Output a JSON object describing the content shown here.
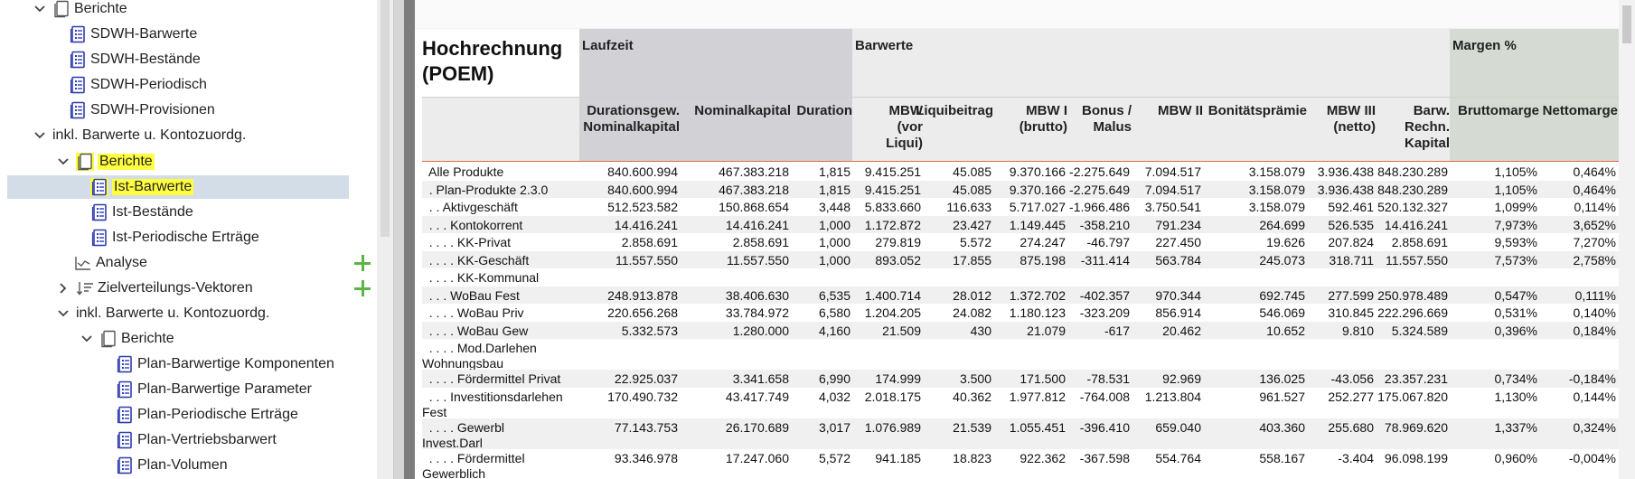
{
  "tree": {
    "items": [
      {
        "label": "Berichte",
        "chevron": "down",
        "icon": "folder-report-icon"
      },
      {
        "label": "SDWH-Barwerte",
        "icon": "report-icon"
      },
      {
        "label": "SDWH-Bestände",
        "icon": "report-icon"
      },
      {
        "label": "SDWH-Periodisch",
        "icon": "report-icon"
      },
      {
        "label": "SDWH-Provisionen",
        "icon": "report-icon"
      },
      {
        "label": "inkl. Barwerte u. Kontozuordg.",
        "chevron": "down"
      },
      {
        "label": "Berichte",
        "chevron": "down",
        "icon": "folder-report-icon",
        "highlighted": true
      },
      {
        "label": "Ist-Barwerte",
        "icon": "report-icon",
        "highlighted": true,
        "selected": true
      },
      {
        "label": "Ist-Bestände",
        "icon": "report-icon"
      },
      {
        "label": "Ist-Periodische Erträge",
        "icon": "report-icon"
      },
      {
        "label": "Analyse",
        "icon": "chart-icon",
        "add_button": true
      },
      {
        "label": "Zielverteilungs-Vektoren",
        "chevron": "right",
        "icon": "sort-icon",
        "add_button": true
      },
      {
        "label": "inkl. Barwerte u. Kontozuordg.",
        "chevron": "down"
      },
      {
        "label": "Berichte",
        "chevron": "down",
        "icon": "folder-report-icon"
      },
      {
        "label": "Plan-Barwertige Komponenten",
        "icon": "report-icon"
      },
      {
        "label": "Plan-Barwertige Parameter",
        "icon": "report-icon"
      },
      {
        "label": "Plan-Periodische Erträge",
        "icon": "report-icon"
      },
      {
        "label": "Plan-Vertriebsbarwert",
        "icon": "report-icon"
      },
      {
        "label": "Plan-Volumen",
        "icon": "report-icon"
      }
    ]
  },
  "report": {
    "title": "Hochrechnung (POEM)",
    "groups": {
      "laufzeit": "Laufzeit",
      "barwerte": "Barwerte",
      "margen": "Margen %"
    },
    "columns": [
      "Durationsgew.\nNominalkapital",
      "Nominalkapital",
      "Duration",
      "MBW\n(vor\nLiqui)",
      "Liquibeitrag",
      "MBW I\n(brutto)",
      "Bonus /\nMalus",
      "MBW II",
      "Bonitätsprämie",
      "MBW III\n(netto)",
      "Barw.\nRechn.\nKapital",
      "Bruttomarge",
      "Nettomarge"
    ],
    "rows": [
      {
        "name": "  Alle Produkte",
        "values": [
          "840.600.994",
          "467.383.218",
          "1,815",
          "9.415.251",
          "45.085",
          "9.370.166",
          "-2.275.649",
          "7.094.517",
          "3.158.079",
          "3.936.438",
          "848.230.289",
          "1,105%",
          "0,464%"
        ]
      },
      {
        "name": "  . Plan-Produkte 2.3.0",
        "values": [
          "840.600.994",
          "467.383.218",
          "1,815",
          "9.415.251",
          "45.085",
          "9.370.166",
          "-2.275.649",
          "7.094.517",
          "3.158.079",
          "3.936.438",
          "848.230.289",
          "1,105%",
          "0,464%"
        ]
      },
      {
        "name": "  . . Aktivgeschäft",
        "values": [
          "512.523.582",
          "150.868.654",
          "3,448",
          "5.833.660",
          "116.633",
          "5.717.027",
          "-1.966.486",
          "3.750.541",
          "3.158.079",
          "592.461",
          "520.132.327",
          "1,099%",
          "0,114%"
        ]
      },
      {
        "name": "  . . . Kontokorrent",
        "values": [
          "14.416.241",
          "14.416.241",
          "1,000",
          "1.172.872",
          "23.427",
          "1.149.445",
          "-358.210",
          "791.234",
          "264.699",
          "526.535",
          "14.416.241",
          "7,973%",
          "3,652%"
        ]
      },
      {
        "name": "  . . . . KK-Privat",
        "values": [
          "2.858.691",
          "2.858.691",
          "1,000",
          "279.819",
          "5.572",
          "274.247",
          "-46.797",
          "227.450",
          "19.626",
          "207.824",
          "2.858.691",
          "9,593%",
          "7,270%"
        ]
      },
      {
        "name": "  . . . . KK-Geschäft",
        "values": [
          "11.557.550",
          "11.557.550",
          "1,000",
          "893.052",
          "17.855",
          "875.198",
          "-311.414",
          "563.784",
          "245.073",
          "318.711",
          "11.557.550",
          "7,573%",
          "2,758%"
        ]
      },
      {
        "name": "  . . . . KK-Kommunal",
        "values": [
          "",
          "",
          "",
          "",
          "",
          "",
          "",
          "",
          "",
          "",
          "",
          "",
          ""
        ]
      },
      {
        "name": "  . . . WoBau Fest",
        "values": [
          "248.913.878",
          "38.406.630",
          "6,535",
          "1.400.714",
          "28.012",
          "1.372.702",
          "-402.357",
          "970.344",
          "692.745",
          "277.599",
          "250.978.489",
          "0,547%",
          "0,111%"
        ]
      },
      {
        "name": "  . . . . WoBau Priv",
        "values": [
          "220.656.268",
          "33.784.972",
          "6,580",
          "1.204.205",
          "24.082",
          "1.180.123",
          "-323.209",
          "856.914",
          "546.069",
          "310.845",
          "222.296.669",
          "0,531%",
          "0,140%"
        ]
      },
      {
        "name": "  . . . . WoBau Gew",
        "values": [
          "5.332.573",
          "1.280.000",
          "4,160",
          "21.509",
          "430",
          "21.079",
          "-617",
          "20.462",
          "10.652",
          "9.810",
          "5.324.589",
          "0,396%",
          "0,184%"
        ]
      },
      {
        "name": "  . . . . Mod.Darlehen\nWohnungsbau",
        "values": [
          "",
          "",
          "",
          "",
          "",
          "",
          "",
          "",
          "",
          "",
          "",
          "",
          ""
        ]
      },
      {
        "name": "  . . . . Fördermittel Privat",
        "values": [
          "22.925.037",
          "3.341.658",
          "6,990",
          "174.999",
          "3.500",
          "171.500",
          "-78.531",
          "92.969",
          "136.025",
          "-43.056",
          "23.357.231",
          "0,734%",
          "-0,184%"
        ]
      },
      {
        "name": "  . . . Investitionsdarlehen\nFest",
        "values": [
          "170.490.732",
          "43.417.749",
          "4,032",
          "2.018.175",
          "40.362",
          "1.977.812",
          "-764.008",
          "1.213.804",
          "961.527",
          "252.277",
          "175.067.820",
          "1,130%",
          "0,144%"
        ]
      },
      {
        "name": "  . . . . Gewerbl\nInvest.Darl",
        "values": [
          "77.143.753",
          "26.170.689",
          "3,017",
          "1.076.989",
          "21.539",
          "1.055.451",
          "-396.410",
          "659.040",
          "403.360",
          "255.680",
          "78.969.620",
          "1,337%",
          "0,324%"
        ]
      },
      {
        "name": "  . . . . Fördermittel\nGewerblich",
        "values": [
          "93.346.978",
          "17.247.060",
          "5,572",
          "941.185",
          "18.823",
          "922.362",
          "-367.598",
          "554.764",
          "558.167",
          "-3.404",
          "96.098.199",
          "0,960%",
          "-0,004%"
        ]
      }
    ]
  },
  "colors": {
    "highlight": "#ffff40",
    "selection": "#d3dde8",
    "laufzeit_header": "#d2d2d6",
    "barwerte_header": "#ececec",
    "margen_header": "#d5dbd2",
    "header_rule": "#e36a3b",
    "add": "#5bb544",
    "icon_blue": "#2f3db0"
  }
}
